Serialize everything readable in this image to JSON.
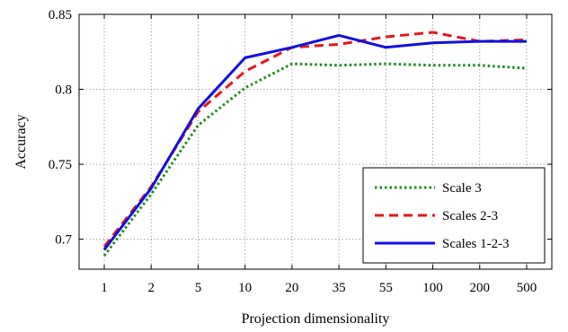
{
  "chart_data": {
    "type": "line",
    "title": "",
    "xlabel": "Projection dimensionality",
    "ylabel": "Accuracy",
    "x_scale": "categorical",
    "categories": [
      "1",
      "2",
      "5",
      "10",
      "20",
      "35",
      "55",
      "100",
      "200",
      "500"
    ],
    "ylim": [
      0.68,
      0.85
    ],
    "yticks": [
      0.7,
      0.75,
      0.8,
      0.85
    ],
    "ytick_labels": [
      "0.7",
      "0.75",
      "0.8",
      "0.85"
    ],
    "grid": true,
    "legend_position": "bottom-right",
    "series": [
      {
        "name": "Scale 3",
        "color": "#1a8c1a",
        "line_style": "dotted",
        "values": [
          0.689,
          0.73,
          0.776,
          0.801,
          0.817,
          0.816,
          0.817,
          0.816,
          0.816,
          0.814
        ]
      },
      {
        "name": "Scales 2-3",
        "color": "#e8141a",
        "line_style": "dashed",
        "values": [
          0.695,
          0.735,
          0.785,
          0.812,
          0.828,
          0.83,
          0.835,
          0.838,
          0.832,
          0.833
        ]
      },
      {
        "name": "Scales 1-2-3",
        "color": "#1010e0",
        "line_style": "solid",
        "values": [
          0.693,
          0.734,
          0.787,
          0.821,
          0.828,
          0.836,
          0.828,
          0.831,
          0.832,
          0.832
        ]
      }
    ]
  }
}
